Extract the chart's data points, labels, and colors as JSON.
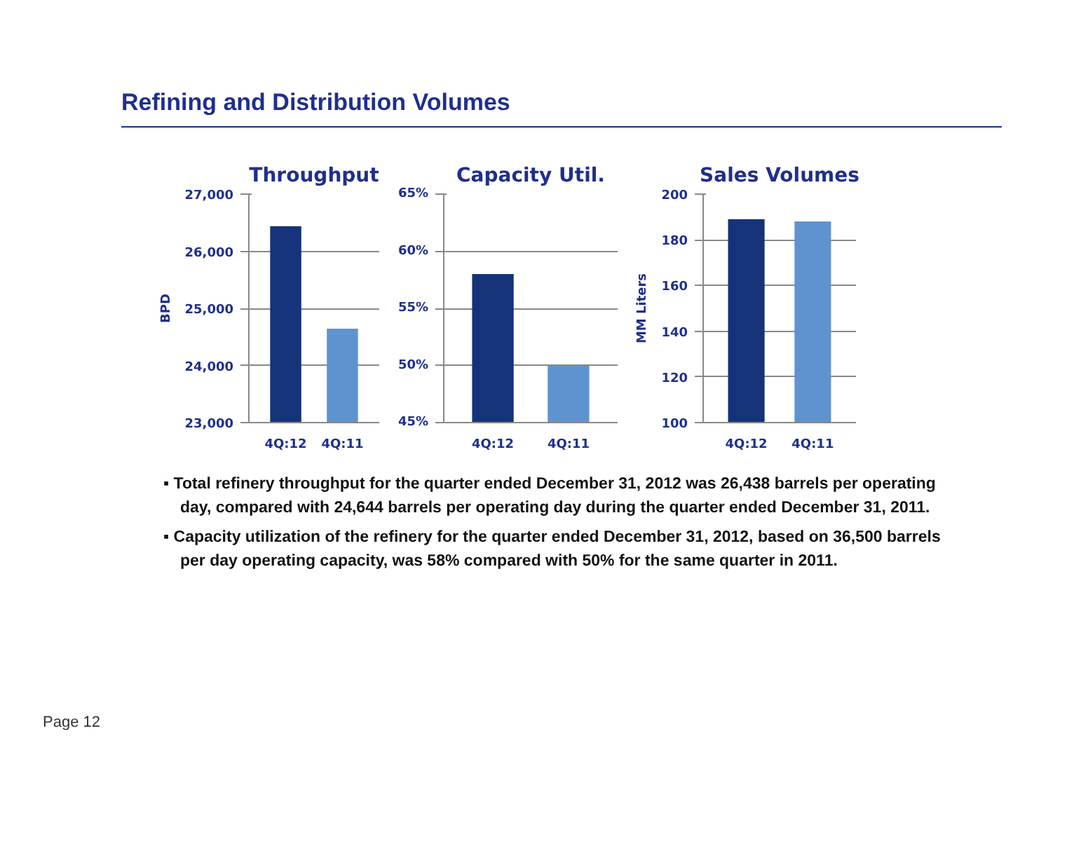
{
  "chart_data": [
    {
      "type": "bar",
      "title": "Throughput",
      "ylabel": "BPD",
      "categories": [
        "4Q:12",
        "4Q:11"
      ],
      "values": [
        26438,
        24644
      ],
      "colors": [
        "#16337a",
        "#5f93cf"
      ],
      "ylim": [
        23000,
        27000
      ],
      "yticks": [
        {
          "value": 23000,
          "label": "23,000"
        },
        {
          "value": 24000,
          "label": "24,000"
        },
        {
          "value": 25000,
          "label": "25,000"
        },
        {
          "value": 26000,
          "label": "26,000"
        },
        {
          "value": 27000,
          "label": "27,000"
        }
      ],
      "grid": "y",
      "annotations": [
        "Refining and Distribution Volumes",
        "▪ Total refinery throughput for the quarter ended December 31, 2012 was 26,438 barrels per operating day, compared with 24,644 barrels per operating day during the quarter ended December 31, 2011.",
        "▪ Capacity utilization of the refinery for the quarter ended December 31, 2012, based on 36,500 barrels per day operating capacity, was 58% compared with 50% for the same quarter in 2011.",
        "Page 12"
      ]
    },
    {
      "type": "bar",
      "title": "Capacity Util.",
      "categories": [
        "4Q:12",
        "4Q:11"
      ],
      "values": [
        58,
        50
      ],
      "colors": [
        "#16337a",
        "#5f93cf"
      ],
      "ylim": [
        45,
        65
      ],
      "yticks": [
        {
          "value": 45,
          "label": "45%"
        },
        {
          "value": 50,
          "label": "50%"
        },
        {
          "value": 55,
          "label": "55%"
        },
        {
          "value": 60,
          "label": "60%"
        },
        {
          "value": 65,
          "label": "65%"
        }
      ],
      "grid": "y"
    },
    {
      "type": "bar",
      "title": "Sales Volumes",
      "ylabel": "MM Liters",
      "categories": [
        "4Q:12",
        "4Q:11"
      ],
      "values": [
        189,
        188
      ],
      "colors": [
        "#16337a",
        "#5f93cf"
      ],
      "ylim": [
        100,
        200
      ],
      "yticks": [
        100,
        120,
        140,
        160,
        180,
        200
      ],
      "grid": "y"
    }
  ]
}
